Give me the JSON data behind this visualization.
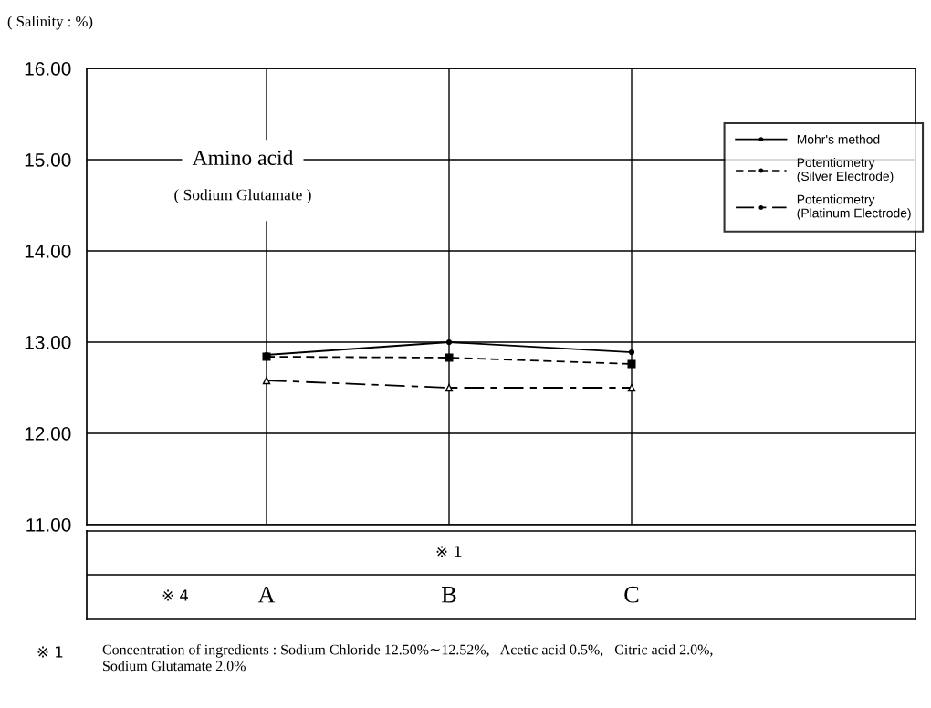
{
  "chart_data": {
    "type": "line",
    "ylabel": "( Salinity : %)",
    "categories": [
      "A",
      "B",
      "C"
    ],
    "series": [
      {
        "name": "Mohr's method",
        "color": "#000000",
        "values": [
          12.86,
          13.0,
          12.89
        ],
        "line_style": "solid",
        "marker": "circle"
      },
      {
        "name": "Potentiometry\n(Silver Electrode)",
        "color": "#000000",
        "values": [
          12.84,
          12.83,
          12.76
        ],
        "line_style": "dashed",
        "marker": "square"
      },
      {
        "name": "Potentiometry\n(Platinum Electrode)",
        "color": "#000000",
        "values": [
          12.58,
          12.5,
          12.5
        ],
        "line_style": "dashdot",
        "marker": "triangle"
      }
    ],
    "ylim": [
      11,
      16
    ],
    "yticks": [
      {
        "value": 11,
        "label": "11.00"
      },
      {
        "value": 12,
        "label": "12.00"
      },
      {
        "value": 13,
        "label": "13.00"
      },
      {
        "value": 14,
        "label": "14.00"
      },
      {
        "value": 15,
        "label": "15.00"
      },
      {
        "value": 16,
        "label": "16.00"
      }
    ],
    "grid": true,
    "legend": "top right",
    "annotations": [
      "Amino acid",
      "( Sodium Glutamate )",
      "※ 1",
      "※ 4",
      "※ 1",
      "Concentration of ingredients : Sodium Chloride 12.50%∼12.52%,   Acetic acid 0.5%,   Citric acid 2.0%,\nSodium Glutamate 2.0%"
    ]
  }
}
